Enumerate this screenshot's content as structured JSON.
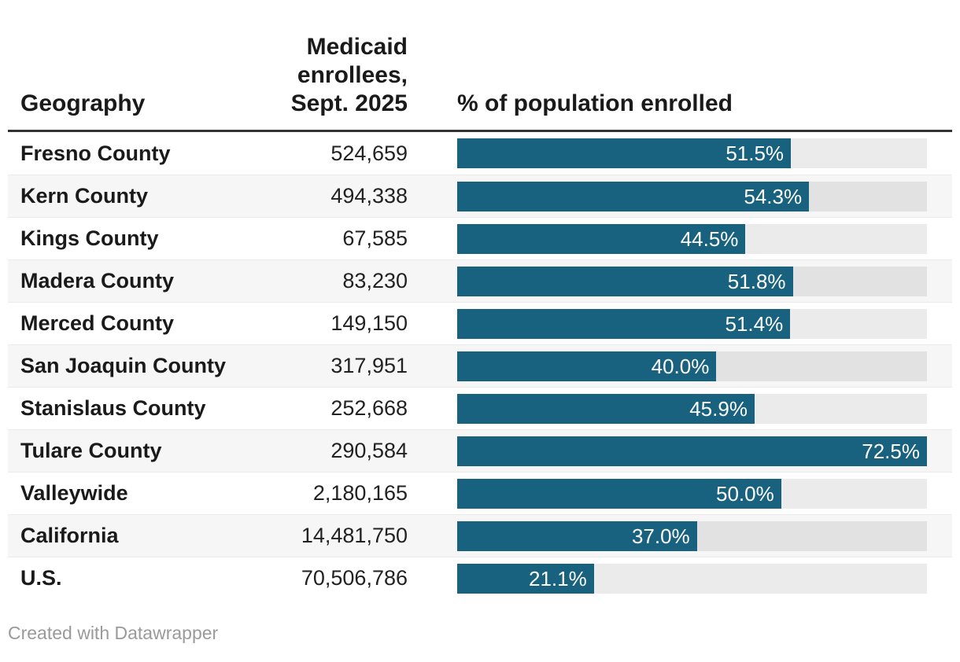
{
  "table": {
    "columns": [
      {
        "label": "Geography"
      },
      {
        "label": "Medicaid enrollees, Sept. 2025",
        "lines": [
          "Medicaid",
          "enrollees,",
          "Sept. 2025"
        ]
      },
      {
        "label": "% of population enrolled"
      }
    ],
    "rows": [
      {
        "geography": "Fresno County",
        "enrollees": "524,659",
        "pct": 51.5,
        "pct_label": "51.5%"
      },
      {
        "geography": "Kern County",
        "enrollees": "494,338",
        "pct": 54.3,
        "pct_label": "54.3%"
      },
      {
        "geography": "Kings County",
        "enrollees": "67,585",
        "pct": 44.5,
        "pct_label": "44.5%"
      },
      {
        "geography": "Madera County",
        "enrollees": "83,230",
        "pct": 51.8,
        "pct_label": "51.8%"
      },
      {
        "geography": "Merced County",
        "enrollees": "149,150",
        "pct": 51.4,
        "pct_label": "51.4%"
      },
      {
        "geography": "San Joaquin County",
        "enrollees": "317,951",
        "pct": 40.0,
        "pct_label": "40.0%"
      },
      {
        "geography": "Stanislaus County",
        "enrollees": "252,668",
        "pct": 45.9,
        "pct_label": "45.9%"
      },
      {
        "geography": "Tulare County",
        "enrollees": "290,584",
        "pct": 72.5,
        "pct_label": "72.5%"
      },
      {
        "geography": "Valleywide",
        "enrollees": "2,180,165",
        "pct": 50.0,
        "pct_label": "50.0%"
      },
      {
        "geography": "California",
        "enrollees": "14,481,750",
        "pct": 37.0,
        "pct_label": "37.0%"
      },
      {
        "geography": "U.S.",
        "enrollees": "70,506,786",
        "pct": 21.1,
        "pct_label": "21.1%"
      }
    ],
    "bar_max": 72.5
  },
  "chart_data": {
    "type": "bar",
    "title": "",
    "categories": [
      "Fresno County",
      "Kern County",
      "Kings County",
      "Madera County",
      "Merced County",
      "San Joaquin County",
      "Stanislaus County",
      "Tulare County",
      "Valleywide",
      "California",
      "U.S."
    ],
    "series": [
      {
        "name": "Medicaid enrollees, Sept. 2025",
        "values": [
          524659,
          494338,
          67585,
          83230,
          149150,
          317951,
          252668,
          290584,
          2180165,
          14481750,
          70506786
        ]
      },
      {
        "name": "% of population enrolled",
        "values": [
          51.5,
          54.3,
          44.5,
          51.8,
          51.4,
          40.0,
          45.9,
          72.5,
          50.0,
          37.0,
          21.1
        ]
      }
    ],
    "xlabel": "",
    "ylabel": "% of population enrolled",
    "bar_axis_range": [
      0,
      72.5
    ],
    "grid": false,
    "legend_position": "column-headers",
    "layout": "horizontal bars embedded in table rows, labels inside bar ends"
  },
  "footer": {
    "attribution": "Created with Datawrapper"
  },
  "colors": {
    "bar_fill": "#19627F",
    "bar_track": "rgba(0,0,0,0.08)",
    "header_border": "#333333",
    "alt_row_background": "#F6F6F6",
    "text": "#1A1A1A",
    "bar_label_text": "#FFFFFF",
    "attribution_text": "#9A9A9A"
  }
}
